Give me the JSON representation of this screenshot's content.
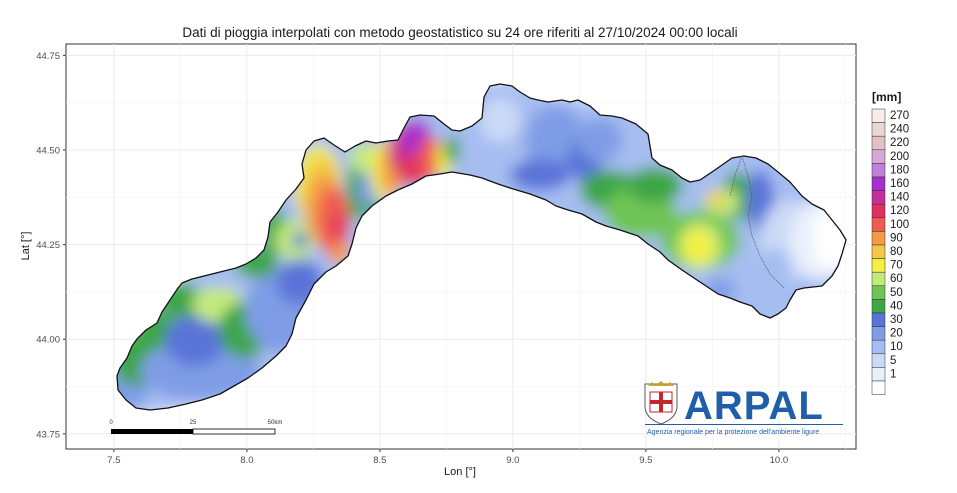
{
  "title": "Dati di pioggia interpolati con metodo geostatistico su 24 ore riferiti al 27/10/2024 00:00 locali",
  "axes": {
    "xlabel": "Lon [°]",
    "ylabel": "Lat [°]",
    "x_ticks": [
      "7.5",
      "8.0",
      "8.5",
      "9.0",
      "9.5",
      "10.0"
    ],
    "y_ticks": [
      "44.75",
      "44.50",
      "44.25",
      "44.00",
      "43.75"
    ],
    "x_values": [
      7.5,
      8.0,
      8.5,
      9.0,
      9.5,
      10.0
    ],
    "y_values": [
      44.75,
      44.5,
      44.25,
      44.0,
      43.75
    ],
    "xlim": [
      7.32,
      10.29
    ],
    "ylim": [
      43.71,
      44.78
    ]
  },
  "legend": {
    "title": "[mm]",
    "items": [
      {
        "label": "270",
        "color": "#f7ecec"
      },
      {
        "label": "240",
        "color": "#ecd6d3"
      },
      {
        "label": "220",
        "color": "#e3c0c8"
      },
      {
        "label": "200",
        "color": "#d7a8d6"
      },
      {
        "label": "180",
        "color": "#bf7fdb"
      },
      {
        "label": "160",
        "color": "#a52fd0"
      },
      {
        "label": "140",
        "color": "#c52f9a"
      },
      {
        "label": "120",
        "color": "#e0305e"
      },
      {
        "label": "100",
        "color": "#f05a52"
      },
      {
        "label": "90",
        "color": "#f39c45"
      },
      {
        "label": "80",
        "color": "#f4c846"
      },
      {
        "label": "70",
        "color": "#f2f045"
      },
      {
        "label": "60",
        "color": "#c4ea7c"
      },
      {
        "label": "50",
        "color": "#6fc455"
      },
      {
        "label": "40",
        "color": "#3ea647"
      },
      {
        "label": "30",
        "color": "#5a73d8"
      },
      {
        "label": "20",
        "color": "#7f9ce6"
      },
      {
        "label": "10",
        "color": "#a6bdf1"
      },
      {
        "label": "5",
        "color": "#ccdaf6"
      },
      {
        "label": "1",
        "color": "#eaf0fb"
      },
      {
        "label": "",
        "color": "#ffffff"
      }
    ]
  },
  "scale_bar": {
    "labels": [
      "0",
      "25",
      "50km"
    ]
  },
  "logo": {
    "name": "ARPAL",
    "subtitle": "Agenzia regionale per la protezione dell'ambiente ligure"
  }
}
